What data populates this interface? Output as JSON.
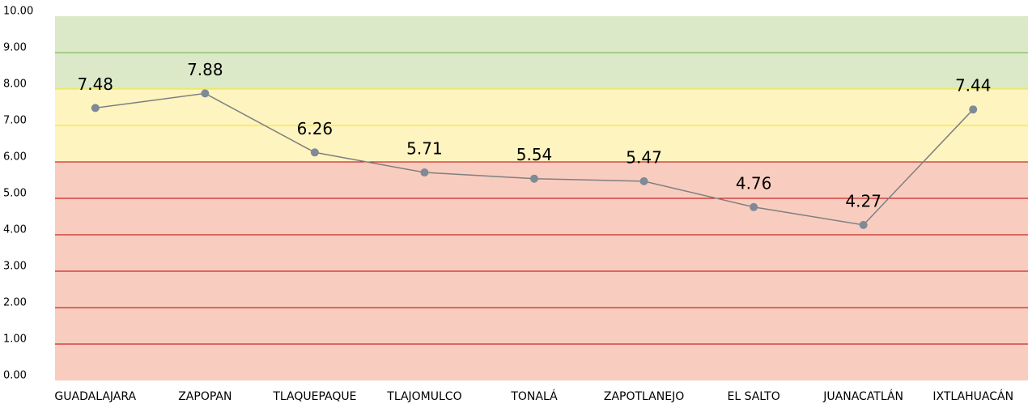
{
  "chart_data": {
    "type": "line",
    "categories": [
      "GUADALAJARA",
      "ZAPOPAN",
      "TLAQUEPAQUE",
      "TLAJOMULCO",
      "TONALÁ",
      "ZAPOTLANEJO",
      "EL SALTO",
      "JUANACATLÁN",
      "IXTLAHUACÁN"
    ],
    "values": [
      7.48,
      7.88,
      6.26,
      5.71,
      5.54,
      5.47,
      4.76,
      4.27,
      7.44
    ],
    "color": "#7f7f7f",
    "marker_color": "#7f8a96",
    "ylim": [
      0,
      10
    ],
    "yticks": [
      {
        "value": 0,
        "label": "0.00"
      },
      {
        "value": 1,
        "label": "1.00"
      },
      {
        "value": 2,
        "label": "2.00"
      },
      {
        "value": 3,
        "label": "3.00"
      },
      {
        "value": 4,
        "label": "4.00"
      },
      {
        "value": 5,
        "label": "5.00"
      },
      {
        "value": 6,
        "label": "6.00"
      },
      {
        "value": 7,
        "label": "7.00"
      },
      {
        "value": 8,
        "label": "8.00"
      },
      {
        "value": 9,
        "label": "9.00"
      },
      {
        "value": 10,
        "label": "10.00"
      }
    ],
    "grid": true,
    "bands": [
      {
        "from": 0,
        "to": 6,
        "color": "#f8cdbf",
        "line": "#c00000"
      },
      {
        "from": 6,
        "to": 8,
        "color": "#fdf4c0",
        "line": "#ffe600"
      },
      {
        "from": 8,
        "to": 10,
        "color": "#dbe9c8",
        "line": "#70ad47"
      }
    ]
  }
}
